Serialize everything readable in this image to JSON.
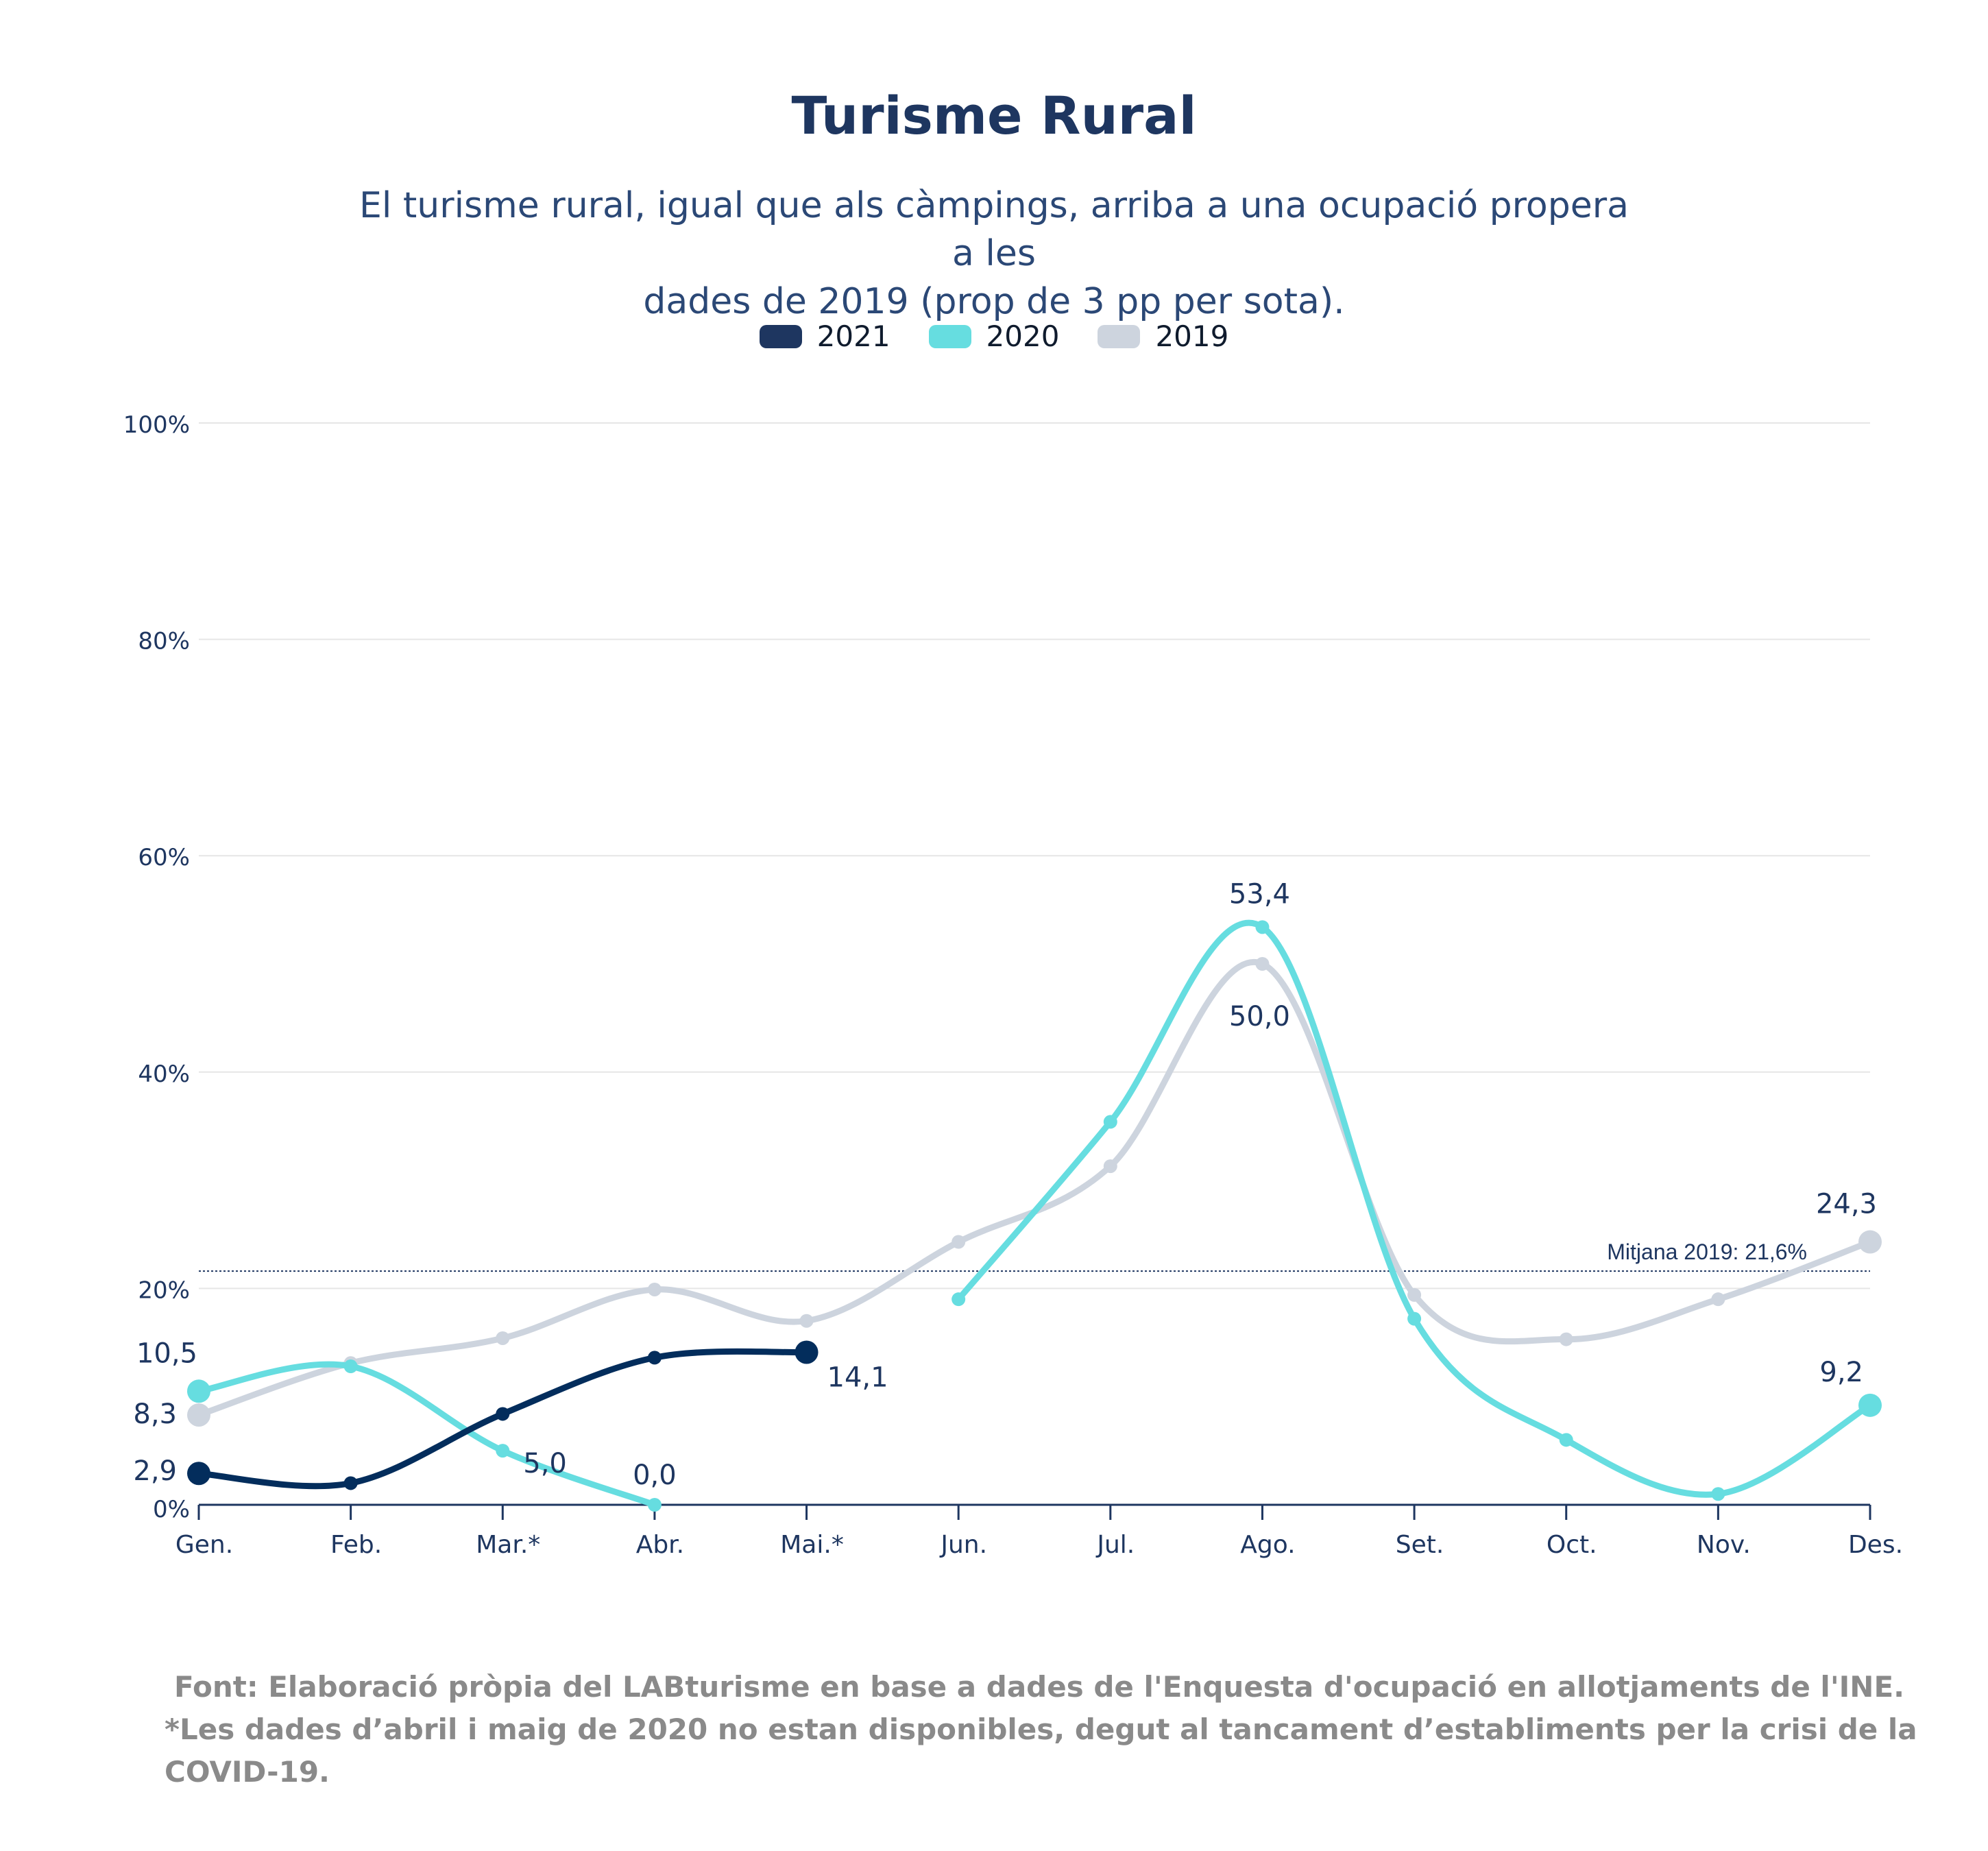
{
  "chart_data": {
    "type": "line",
    "title": "Turisme Rural",
    "subtitle_line1": "El turisme rural, igual que als càmpings, arriba a una ocupació propera a les",
    "subtitle_line2": "dades de 2019 (prop de 3 pp per sota).",
    "categories": [
      "Gen.",
      "Feb.",
      "Mar.*",
      "Abr.",
      "Mai.*",
      "Jun.",
      "Jul.",
      "Ago.",
      "Set.",
      "Oct.",
      "Nov.",
      "Des."
    ],
    "ylim": [
      0,
      100
    ],
    "yticks": [
      "0%",
      "20%",
      "40%",
      "60%",
      "80%",
      "100%"
    ],
    "grid": true,
    "legend_position": "top-center",
    "series": [
      {
        "name": "2021",
        "color": "#032d5c",
        "values": [
          2.9,
          2.0,
          8.4,
          13.6,
          14.1,
          null,
          null,
          null,
          null,
          null,
          null,
          null
        ],
        "labels": {
          "0": "2,9",
          "4": "14,1"
        }
      },
      {
        "name": "2020",
        "color": "#66dde0",
        "values": [
          10.5,
          12.8,
          5.0,
          0.0,
          null,
          19.0,
          35.4,
          53.4,
          17.2,
          6.0,
          1.0,
          9.2
        ],
        "labels": {
          "0": "10,5",
          "2": "5,0",
          "3": "0,0",
          "7": "53,4",
          "11": "9,2"
        }
      },
      {
        "name": "2019",
        "color": "#cdd4de",
        "values": [
          8.3,
          13.1,
          15.4,
          19.9,
          17.0,
          24.3,
          31.3,
          50.0,
          19.4,
          15.3,
          19.0,
          24.3
        ],
        "labels": {
          "0": "8,3",
          "7": "50,0",
          "11": "24,3"
        }
      }
    ],
    "reference_line": {
      "value": 21.6,
      "label": "Mitjana 2019: 21,6%",
      "color": "#1e3660"
    }
  },
  "legend": [
    {
      "label": "2021",
      "color": "#1e3660"
    },
    {
      "label": "2020",
      "color": "#66dde0"
    },
    {
      "label": "2019",
      "color": "#cdd4de"
    }
  ],
  "footer": {
    "source": "Font: Elaboració pròpia del LABturisme en base a dades de l'Enquesta d'ocupació en allotjaments de l'INE.",
    "note": "*Les dades d’abril i maig de 2020 no estan disponibles, degut al tancament d’establiments per la crisi de la COVID-19."
  }
}
